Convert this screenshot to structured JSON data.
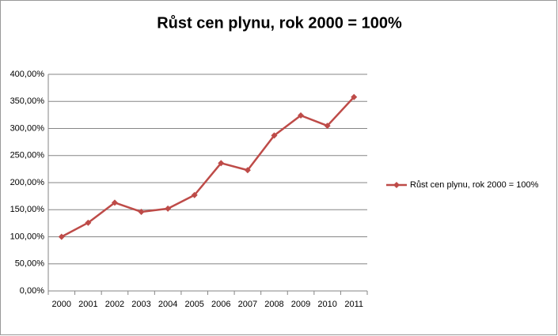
{
  "chart_data": {
    "type": "line",
    "title": "Růst cen plynu, rok 2000 = 100%",
    "categories": [
      "2000",
      "2001",
      "2002",
      "2003",
      "2004",
      "2005",
      "2006",
      "2007",
      "2008",
      "2009",
      "2010",
      "2011"
    ],
    "series": [
      {
        "name": "Růst cen plynu, rok 2000 = 100%",
        "color": "#be4b48",
        "values": [
          100,
          126,
          163,
          146,
          152,
          177,
          236,
          223,
          287,
          324,
          305,
          358
        ]
      }
    ],
    "ylim": [
      0,
      400
    ],
    "yticks": [
      {
        "value": 0,
        "label": "0,00%"
      },
      {
        "value": 50,
        "label": "50,00%"
      },
      {
        "value": 100,
        "label": "100,00%"
      },
      {
        "value": 150,
        "label": "150,00%"
      },
      {
        "value": 200,
        "label": "200,00%"
      },
      {
        "value": 250,
        "label": "250,00%"
      },
      {
        "value": 300,
        "label": "300,00%"
      },
      {
        "value": 350,
        "label": "350,00%"
      },
      {
        "value": 400,
        "label": "400,00%"
      }
    ],
    "grid": true,
    "legend": "right"
  }
}
